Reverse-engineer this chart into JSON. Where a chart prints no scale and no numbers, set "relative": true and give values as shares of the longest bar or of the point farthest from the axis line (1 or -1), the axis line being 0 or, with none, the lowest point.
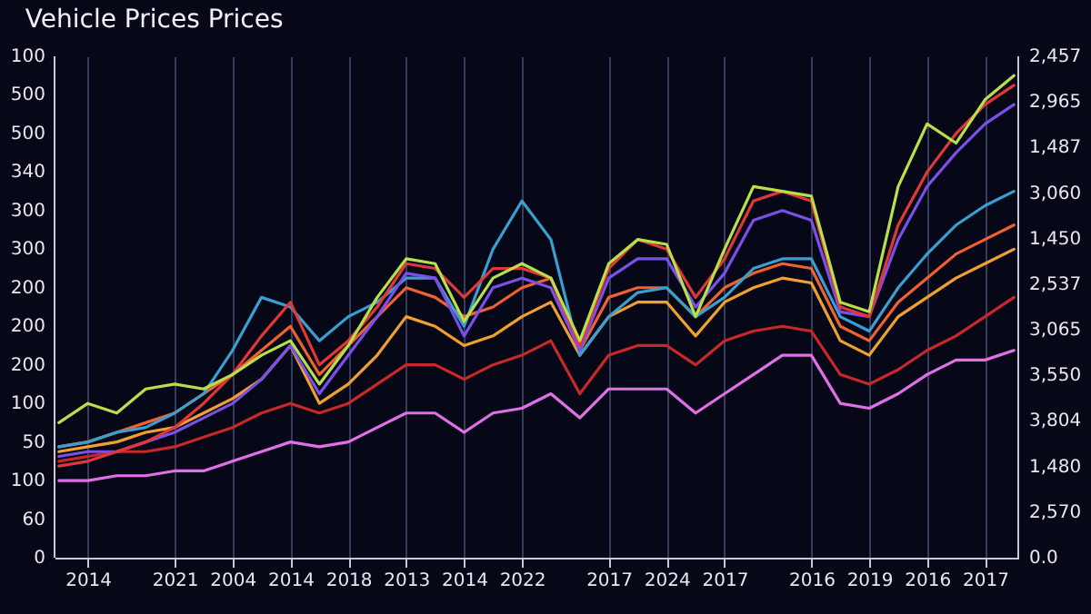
{
  "chart_data": {
    "type": "line",
    "title": "Vehicle Prices Prices",
    "relative": true,
    "categories": [
      null,
      "2014",
      null,
      null,
      "2021",
      null,
      "2004",
      null,
      "2014",
      null,
      "2018",
      null,
      "2013",
      null,
      "2014",
      null,
      "2022",
      null,
      null,
      "2017",
      null,
      "2024",
      null,
      "2017",
      null,
      null,
      "2016",
      null,
      "2019",
      null,
      "2016",
      null,
      "2017",
      null
    ],
    "annotations": [
      "100",
      "500",
      "500",
      "340",
      "300",
      "300",
      "200",
      "200",
      "200",
      "100",
      "50",
      "100",
      "60",
      "0",
      "2,457",
      "2,965",
      "1,487",
      "3,060",
      "1,450",
      "2,537",
      "3,065",
      "3,550",
      "3,804",
      "1,480",
      "2,570",
      "0.0"
    ],
    "grid": "x",
    "line_style": "solid",
    "series": [
      {
        "color": "#e070e8",
        "values": [
          0.16,
          0.16,
          0.17,
          0.17,
          0.18,
          0.18,
          0.2,
          0.22,
          0.24,
          0.23,
          0.24,
          0.27,
          0.3,
          0.3,
          0.26,
          0.3,
          0.31,
          0.34,
          0.29,
          0.35,
          0.35,
          0.35,
          0.3,
          0.34,
          0.38,
          0.42,
          0.42,
          0.32,
          0.31,
          0.34,
          0.38,
          0.41,
          0.41,
          0.43
        ]
      },
      {
        "color": "#c82828",
        "values": [
          0.2,
          0.21,
          0.22,
          0.22,
          0.23,
          0.25,
          0.27,
          0.3,
          0.32,
          0.3,
          0.32,
          0.36,
          0.4,
          0.4,
          0.37,
          0.4,
          0.42,
          0.45,
          0.34,
          0.42,
          0.44,
          0.44,
          0.4,
          0.45,
          0.47,
          0.48,
          0.47,
          0.38,
          0.36,
          0.39,
          0.43,
          0.46,
          0.5,
          0.54
        ]
      },
      {
        "color": "#f0a030",
        "values": [
          0.22,
          0.23,
          0.24,
          0.26,
          0.27,
          0.3,
          0.33,
          0.37,
          0.44,
          0.32,
          0.36,
          0.42,
          0.5,
          0.48,
          0.44,
          0.46,
          0.5,
          0.53,
          0.42,
          0.5,
          0.53,
          0.53,
          0.46,
          0.53,
          0.56,
          0.58,
          0.57,
          0.45,
          0.42,
          0.5,
          0.54,
          0.58,
          0.61,
          0.64
        ]
      },
      {
        "color": "#f06030",
        "values": [
          0.23,
          0.24,
          0.26,
          0.28,
          0.3,
          0.34,
          0.38,
          0.43,
          0.48,
          0.38,
          0.44,
          0.5,
          0.56,
          0.54,
          0.5,
          0.52,
          0.56,
          0.58,
          0.43,
          0.54,
          0.56,
          0.56,
          0.5,
          0.56,
          0.59,
          0.61,
          0.6,
          0.48,
          0.45,
          0.53,
          0.58,
          0.63,
          0.66,
          0.69
        ]
      },
      {
        "color": "#3a9fd0",
        "values": [
          0.23,
          0.24,
          0.26,
          0.27,
          0.3,
          0.34,
          0.43,
          0.54,
          0.52,
          0.45,
          0.5,
          0.53,
          0.58,
          0.58,
          0.48,
          0.64,
          0.74,
          0.66,
          0.42,
          0.5,
          0.55,
          0.56,
          0.5,
          0.54,
          0.6,
          0.62,
          0.62,
          0.5,
          0.47,
          0.56,
          0.63,
          0.69,
          0.73,
          0.76
        ]
      },
      {
        "color": "#7a50e8",
        "values": [
          0.21,
          0.22,
          0.22,
          0.24,
          0.26,
          0.29,
          0.32,
          0.37,
          0.44,
          0.34,
          0.42,
          0.5,
          0.59,
          0.58,
          0.46,
          0.56,
          0.58,
          0.56,
          0.43,
          0.58,
          0.62,
          0.62,
          0.52,
          0.59,
          0.7,
          0.72,
          0.7,
          0.51,
          0.5,
          0.66,
          0.77,
          0.84,
          0.9,
          0.94
        ]
      },
      {
        "color": "#e03838",
        "values": [
          0.19,
          0.2,
          0.22,
          0.24,
          0.27,
          0.32,
          0.38,
          0.46,
          0.53,
          0.4,
          0.45,
          0.52,
          0.61,
          0.6,
          0.54,
          0.6,
          0.6,
          0.58,
          0.44,
          0.6,
          0.66,
          0.64,
          0.54,
          0.62,
          0.74,
          0.76,
          0.74,
          0.52,
          0.5,
          0.69,
          0.8,
          0.88,
          0.94,
          0.98
        ]
      },
      {
        "color": "#b8e04a",
        "values": [
          0.28,
          0.32,
          0.3,
          0.35,
          0.36,
          0.35,
          0.38,
          0.42,
          0.45,
          0.36,
          0.44,
          0.54,
          0.62,
          0.61,
          0.49,
          0.58,
          0.61,
          0.58,
          0.45,
          0.61,
          0.66,
          0.65,
          0.5,
          0.64,
          0.77,
          0.76,
          0.75,
          0.53,
          0.51,
          0.77,
          0.9,
          0.86,
          0.95,
          1
        ]
      }
    ]
  }
}
